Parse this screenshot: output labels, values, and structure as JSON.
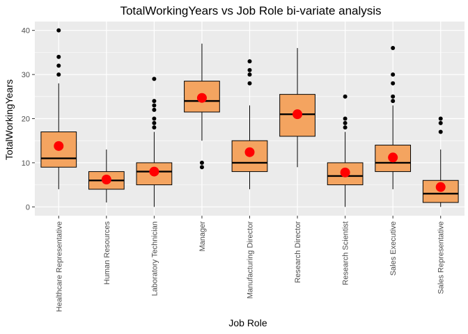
{
  "chart_data": {
    "type": "boxplot",
    "title": "TotalWorkingYears vs Job Role bi-variate analysis",
    "xlabel": "Job Role",
    "ylabel": "TotalWorkingYears",
    "ylim": [
      -2,
      42
    ],
    "yticks": [
      0,
      10,
      20,
      30,
      40
    ],
    "grid": true,
    "colors": {
      "panel": "#ebebeb",
      "grid": "#ffffff",
      "box_fill": "#f4a460",
      "box_stroke": "#000000",
      "median": "#000000",
      "mean_point": "#ff0000",
      "outlier": "#000000"
    },
    "categories": [
      "Healthcare Representative",
      "Human Resources",
      "Laboratory Technician",
      "Manager",
      "Manufacturing Director",
      "Research Director",
      "Research Scientist",
      "Sales Executive",
      "Sales Representative"
    ],
    "boxes": [
      {
        "min": 4,
        "q1": 9,
        "median": 11,
        "q3": 17,
        "max": 28,
        "mean": 13.8,
        "outliers": [
          30,
          32,
          34,
          40
        ]
      },
      {
        "min": 1,
        "q1": 4,
        "median": 6,
        "q3": 8,
        "max": 13,
        "mean": 6.2,
        "outliers": []
      },
      {
        "min": 0,
        "q1": 5,
        "median": 8,
        "q3": 10,
        "max": 17,
        "mean": 8.0,
        "outliers": [
          18,
          19,
          20,
          22,
          23,
          24,
          29
        ]
      },
      {
        "min": 15,
        "q1": 21.5,
        "median": 24,
        "q3": 28.5,
        "max": 37,
        "mean": 24.7,
        "outliers": [
          9,
          10
        ]
      },
      {
        "min": 4,
        "q1": 8,
        "median": 10,
        "q3": 15,
        "max": 23,
        "mean": 12.4,
        "outliers": [
          28,
          30,
          31,
          33
        ]
      },
      {
        "min": 9,
        "q1": 16,
        "median": 21,
        "q3": 25.5,
        "max": 36,
        "mean": 21.0,
        "outliers": []
      },
      {
        "min": 0,
        "q1": 5,
        "median": 7,
        "q3": 10,
        "max": 17,
        "mean": 7.8,
        "outliers": [
          18,
          19,
          20,
          25
        ]
      },
      {
        "min": 4,
        "q1": 8,
        "median": 10,
        "q3": 14,
        "max": 23,
        "mean": 11.2,
        "outliers": [
          24,
          25,
          28,
          30,
          36
        ]
      },
      {
        "min": 0,
        "q1": 1,
        "median": 3,
        "q3": 6,
        "max": 13,
        "mean": 4.5,
        "outliers": [
          17,
          19,
          20
        ]
      }
    ]
  }
}
